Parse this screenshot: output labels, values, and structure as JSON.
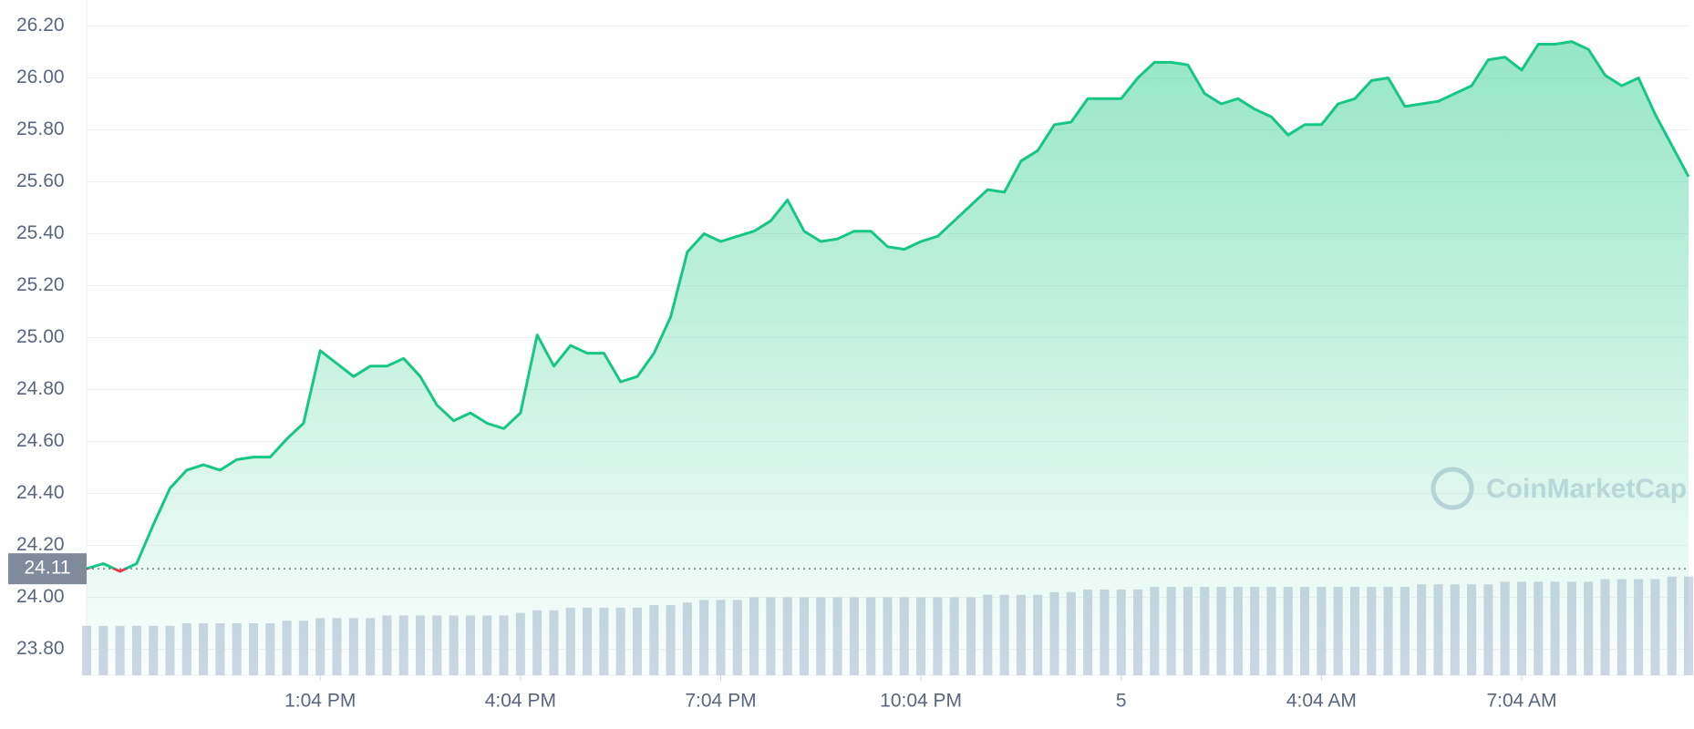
{
  "chart_data": {
    "type": "area",
    "series": [
      {
        "color": "#16c784",
        "values": [
          24.11,
          24.13,
          24.1,
          24.13,
          24.28,
          24.42,
          24.49,
          24.51,
          24.49,
          24.53,
          24.54,
          24.54,
          24.61,
          24.67,
          24.95,
          24.9,
          24.85,
          24.89,
          24.89,
          24.92,
          24.85,
          24.74,
          24.68,
          24.71,
          24.67,
          24.65,
          24.71,
          25.01,
          24.89,
          24.97,
          24.94,
          24.94,
          24.83,
          24.85,
          24.94,
          25.08,
          25.33,
          25.4,
          25.37,
          25.39,
          25.41,
          25.45,
          25.53,
          25.41,
          25.37,
          25.38,
          25.41,
          25.41,
          25.35,
          25.34,
          25.37,
          25.39,
          25.45,
          25.51,
          25.57,
          25.56,
          25.68,
          25.72,
          25.82,
          25.83,
          25.92,
          25.92,
          25.92,
          26.0,
          26.06,
          26.06,
          26.05,
          25.94,
          25.9,
          25.92,
          25.88,
          25.85,
          25.78,
          25.82,
          25.82,
          25.9,
          25.92,
          25.99,
          26.0,
          25.89,
          25.9,
          25.91,
          25.94,
          25.97,
          26.07,
          26.08,
          26.03,
          26.13,
          26.13,
          26.14,
          26.11,
          26.01,
          25.97,
          26.0,
          25.86,
          25.74,
          25.62
        ]
      }
    ],
    "below_color": "#ea3943",
    "baseline": 24.11,
    "volume_bars": {
      "color": "#cfd6e4",
      "values": [
        23.89,
        23.89,
        23.89,
        23.89,
        23.89,
        23.89,
        23.9,
        23.9,
        23.9,
        23.9,
        23.9,
        23.9,
        23.91,
        23.91,
        23.92,
        23.92,
        23.92,
        23.92,
        23.93,
        23.93,
        23.93,
        23.93,
        23.93,
        23.93,
        23.93,
        23.93,
        23.94,
        23.95,
        23.95,
        23.96,
        23.96,
        23.96,
        23.96,
        23.96,
        23.97,
        23.97,
        23.98,
        23.99,
        23.99,
        23.99,
        24.0,
        24.0,
        24.0,
        24.0,
        24.0,
        24.0,
        24.0,
        24.0,
        24.0,
        24.0,
        24.0,
        24.0,
        24.0,
        24.0,
        24.01,
        24.01,
        24.01,
        24.01,
        24.02,
        24.02,
        24.03,
        24.03,
        24.03,
        24.03,
        24.04,
        24.04,
        24.04,
        24.04,
        24.04,
        24.04,
        24.04,
        24.04,
        24.04,
        24.04,
        24.04,
        24.04,
        24.04,
        24.04,
        24.04,
        24.04,
        24.05,
        24.05,
        24.05,
        24.05,
        24.05,
        24.06,
        24.06,
        24.06,
        24.06,
        24.06,
        24.06,
        24.07,
        24.07,
        24.07,
        24.07,
        24.08,
        24.08
      ]
    },
    "ylim": [
      23.7,
      26.3
    ],
    "yticks": [
      {
        "value": 23.8,
        "label": "23.80"
      },
      {
        "value": 24.0,
        "label": "24.00"
      },
      {
        "value": 24.2,
        "label": "24.20"
      },
      {
        "value": 24.4,
        "label": "24.40"
      },
      {
        "value": 24.6,
        "label": "24.60"
      },
      {
        "value": 24.8,
        "label": "24.80"
      },
      {
        "value": 25.0,
        "label": "25.00"
      },
      {
        "value": 25.2,
        "label": "25.20"
      },
      {
        "value": 25.4,
        "label": "25.40"
      },
      {
        "value": 25.6,
        "label": "25.60"
      },
      {
        "value": 25.8,
        "label": "25.80"
      },
      {
        "value": 26.0,
        "label": "26.00"
      },
      {
        "value": 26.2,
        "label": "26.20"
      }
    ],
    "xticks": [
      {
        "value": 14,
        "label": "1:04 PM"
      },
      {
        "value": 26,
        "label": "4:04 PM"
      },
      {
        "value": 38,
        "label": "7:04 PM"
      },
      {
        "value": 50,
        "label": "10:04 PM"
      },
      {
        "value": 62,
        "label": "5"
      },
      {
        "value": 74,
        "label": "4:04 AM"
      },
      {
        "value": 86,
        "label": "7:04 AM"
      }
    ],
    "grid": true,
    "watermark": "CoinMarketCap"
  }
}
